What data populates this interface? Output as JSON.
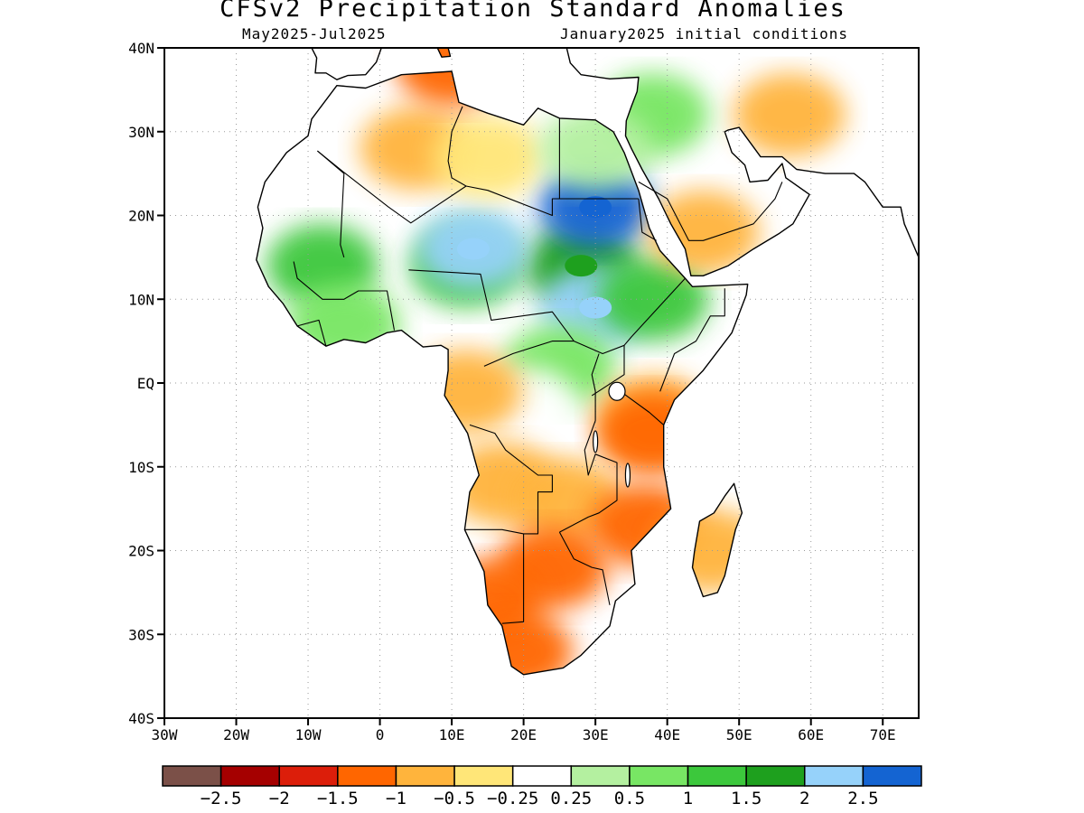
{
  "header": {
    "title": "CFSv2 Precipitation Standard Anomalies",
    "period": "May2025-Jul2025",
    "initial_conditions": "January2025 initial conditions"
  },
  "map": {
    "region": "Africa",
    "projection": "lat-lon",
    "lon_range": [
      -30,
      75
    ],
    "lat_range": [
      -40,
      40
    ],
    "lat_ticks": [
      {
        "value": 40,
        "label": "40N"
      },
      {
        "value": 30,
        "label": "30N"
      },
      {
        "value": 20,
        "label": "20N"
      },
      {
        "value": 10,
        "label": "10N"
      },
      {
        "value": 0,
        "label": "EQ"
      },
      {
        "value": -10,
        "label": "10S"
      },
      {
        "value": -20,
        "label": "20S"
      },
      {
        "value": -30,
        "label": "30S"
      },
      {
        "value": -40,
        "label": "40S"
      }
    ],
    "lon_ticks": [
      {
        "value": -30,
        "label": "30W"
      },
      {
        "value": -20,
        "label": "20W"
      },
      {
        "value": -10,
        "label": "10W"
      },
      {
        "value": 0,
        "label": "0"
      },
      {
        "value": 10,
        "label": "10E"
      },
      {
        "value": 20,
        "label": "20E"
      },
      {
        "value": 30,
        "label": "30E"
      },
      {
        "value": 40,
        "label": "40E"
      },
      {
        "value": 50,
        "label": "50E"
      },
      {
        "value": 60,
        "label": "60E"
      },
      {
        "value": 70,
        "label": "70E"
      }
    ],
    "grid": true
  },
  "colorbar": {
    "colors": [
      "#7b5048",
      "#a50000",
      "#dc1e0a",
      "#ff6600",
      "#ffb43c",
      "#ffe678",
      "#ffffff",
      "#b4f0a0",
      "#78e664",
      "#3cc83c",
      "#1ea01e",
      "#96d2fa",
      "#1464d2"
    ],
    "labels": [
      "-2.5",
      "-2",
      "-1.5",
      "-1",
      "-0.5",
      "-0.25",
      "0.25",
      "0.5",
      "1",
      "1.5",
      "2",
      "2.5"
    ]
  },
  "anomaly_regions": [
    {
      "name": "sahel-west",
      "lon": -8,
      "lat": 14,
      "value": 1.2
    },
    {
      "name": "sahel-central",
      "lon": 12,
      "lat": 14,
      "value": 1.4
    },
    {
      "name": "sudan",
      "lon": 28,
      "lat": 14,
      "value": 1.6
    },
    {
      "name": "south-sudan",
      "lon": 30,
      "lat": 9,
      "value": 2.2
    },
    {
      "name": "north-sudan",
      "lon": 30,
      "lat": 21,
      "value": 2.6
    },
    {
      "name": "chad",
      "lon": 13,
      "lat": 16,
      "value": 2.1
    },
    {
      "name": "ethiopia",
      "lon": 38,
      "lat": 10,
      "value": 1.3
    },
    {
      "name": "west-coast-guinea",
      "lon": -5,
      "lat": 7,
      "value": 0.7
    },
    {
      "name": "central-africa",
      "lon": 25,
      "lat": 2,
      "value": 0.8
    },
    {
      "name": "congo-basin",
      "lon": 20,
      "lat": -3,
      "value": 0.2
    },
    {
      "name": "gabon",
      "lon": 12,
      "lat": -1,
      "value": -0.6
    },
    {
      "name": "north-africa",
      "lon": 5,
      "lat": 28,
      "value": -0.6
    },
    {
      "name": "libya",
      "lon": 15,
      "lat": 27,
      "value": -0.4
    },
    {
      "name": "east-africa-kenya",
      "lon": 38,
      "lat": -4,
      "value": -0.8
    },
    {
      "name": "tanzania-coast",
      "lon": 38,
      "lat": -6,
      "value": -1.1
    },
    {
      "name": "angola",
      "lon": 17,
      "lat": -12,
      "value": -0.6
    },
    {
      "name": "zambia",
      "lon": 26,
      "lat": -14,
      "value": -0.7
    },
    {
      "name": "mozambique",
      "lon": 37,
      "lat": -17,
      "value": -1.0
    },
    {
      "name": "botswana",
      "lon": 24,
      "lat": -22,
      "value": -1.0
    },
    {
      "name": "namibia-coast",
      "lon": 15,
      "lat": -26,
      "value": -1.3
    },
    {
      "name": "south-africa-west",
      "lon": 19,
      "lat": -32,
      "value": -1.2
    },
    {
      "name": "madagascar",
      "lon": 46,
      "lat": -20,
      "value": -0.8
    },
    {
      "name": "arabia-south",
      "lon": 45,
      "lat": 18,
      "value": -0.5
    },
    {
      "name": "iran",
      "lon": 57,
      "lat": 32,
      "value": -0.8
    },
    {
      "name": "mediterranean",
      "lon": 10,
      "lat": 38,
      "value": -1.0
    },
    {
      "name": "levant",
      "lon": 38,
      "lat": 32,
      "value": 0.7
    },
    {
      "name": "egypt-north",
      "lon": 30,
      "lat": 28,
      "value": 0.4
    }
  ]
}
